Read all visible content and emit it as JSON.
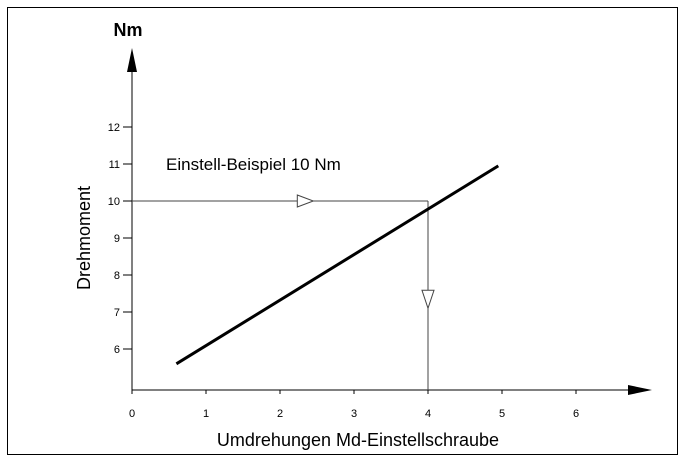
{
  "chart_data": {
    "type": "line",
    "title": "",
    "ylabel": "Drehmoment",
    "y_unit": "Nm",
    "xlabel": "Umdrehungen Md-Einstellschraube",
    "x_ticks": [
      "0",
      "1",
      "2",
      "3",
      "4",
      "5",
      "6"
    ],
    "y_ticks": [
      "6",
      "7",
      "8",
      "9",
      "10",
      "11",
      "12"
    ],
    "series": [
      {
        "x": [
          0.6,
          4.95
        ],
        "y": [
          5.6,
          10.95
        ]
      }
    ],
    "annotation": {
      "text": "Einstell-Beispiel 10 Nm",
      "y_value": 10,
      "x_value": 4
    },
    "xlim": [
      0,
      6.9
    ],
    "ylim": [
      5,
      13
    ],
    "grid": false,
    "colors": {
      "line": "#000000",
      "guide": "#444444",
      "axis": "#000000"
    }
  }
}
